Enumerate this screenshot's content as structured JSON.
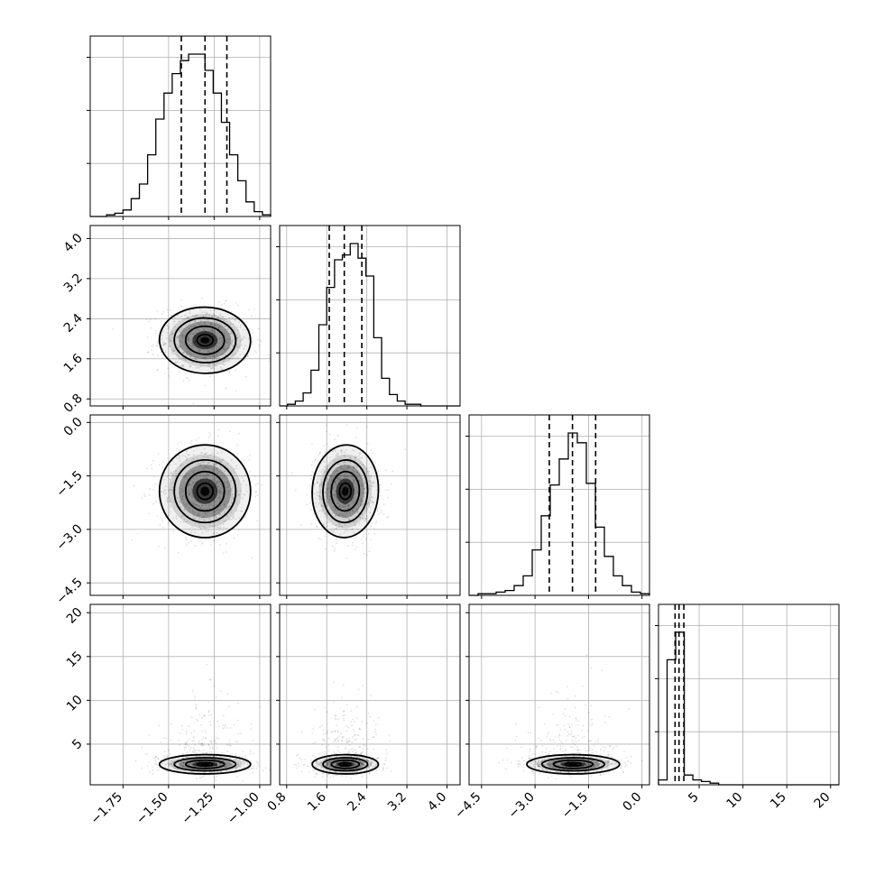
{
  "chart_data": {
    "type": "corner",
    "parameters": [
      {
        "range": [
          -1.93,
          -0.94
        ],
        "ticks": [
          -1.75,
          -1.5,
          -1.25,
          -1.0
        ],
        "tick_labels": [
          "−1.75",
          "−1.50",
          "−1.25",
          "−1.00"
        ],
        "quantiles": [
          -1.43,
          -1.3,
          -1.18
        ],
        "median": -1.3,
        "sigma": 0.125,
        "histogram": [
          0.0,
          0.0,
          0.01,
          0.02,
          0.04,
          0.11,
          0.2,
          0.38,
          0.6,
          0.76,
          0.88,
          0.96,
          1.0,
          1.0,
          0.9,
          0.76,
          0.58,
          0.38,
          0.22,
          0.09,
          0.03,
          0.01
        ]
      },
      {
        "range": [
          0.66,
          4.26
        ],
        "ticks": [
          0.8,
          1.6,
          2.4,
          3.2,
          4.0
        ],
        "tick_labels": [
          "0.8",
          "1.6",
          "2.4",
          "3.2",
          "4.0"
        ],
        "quantiles": [
          1.65,
          1.95,
          2.3
        ],
        "median": 1.97,
        "sigma": 0.33,
        "histogram": [
          0.0,
          0.01,
          0.03,
          0.08,
          0.22,
          0.5,
          0.73,
          0.9,
          0.93,
          1.0,
          0.91,
          0.8,
          0.42,
          0.17,
          0.07,
          0.03,
          0.01,
          0.01,
          0.0,
          0.0,
          0.0,
          0.0,
          0.0
        ]
      },
      {
        "range": [
          -4.85,
          0.21
        ],
        "ticks": [
          -4.5,
          -3.0,
          -1.5,
          0.0
        ],
        "tick_labels": [
          "−4.5",
          "−3.0",
          "−1.5",
          "0.0"
        ],
        "quantiles": [
          -2.6,
          -1.95,
          -1.3
        ],
        "median": -1.93,
        "sigma": 0.65,
        "histogram": [
          0.0,
          0.01,
          0.01,
          0.02,
          0.03,
          0.06,
          0.12,
          0.28,
          0.49,
          0.68,
          0.84,
          1.0,
          0.94,
          0.69,
          0.42,
          0.24,
          0.12,
          0.06,
          0.02,
          0.01
        ]
      },
      {
        "range": [
          0.36,
          20.95
        ],
        "ticks": [
          5,
          10,
          15,
          20
        ],
        "tick_labels": [
          "5",
          "10",
          "15",
          "20"
        ],
        "quantiles": [
          2.25,
          2.7,
          3.25
        ],
        "median": 2.7,
        "sigma": 0.55,
        "histogram": [
          0.03,
          0.77,
          0.94,
          0.06,
          0.03,
          0.02,
          0.01,
          0.0,
          0.0,
          0.0,
          0.0,
          0.0,
          0.0,
          0.0,
          0.0,
          0.0,
          0.0,
          0.0,
          0.0,
          0.0,
          0.0
        ]
      }
    ],
    "correlations": [
      [
        0,
        1,
        -0.05
      ],
      [
        0,
        2,
        0.0
      ],
      [
        1,
        2,
        -0.1
      ],
      [
        0,
        3,
        0.0
      ],
      [
        1,
        3,
        0.0
      ],
      [
        2,
        3,
        0.0
      ]
    ],
    "grid": true,
    "quantile_style": "dashed"
  }
}
